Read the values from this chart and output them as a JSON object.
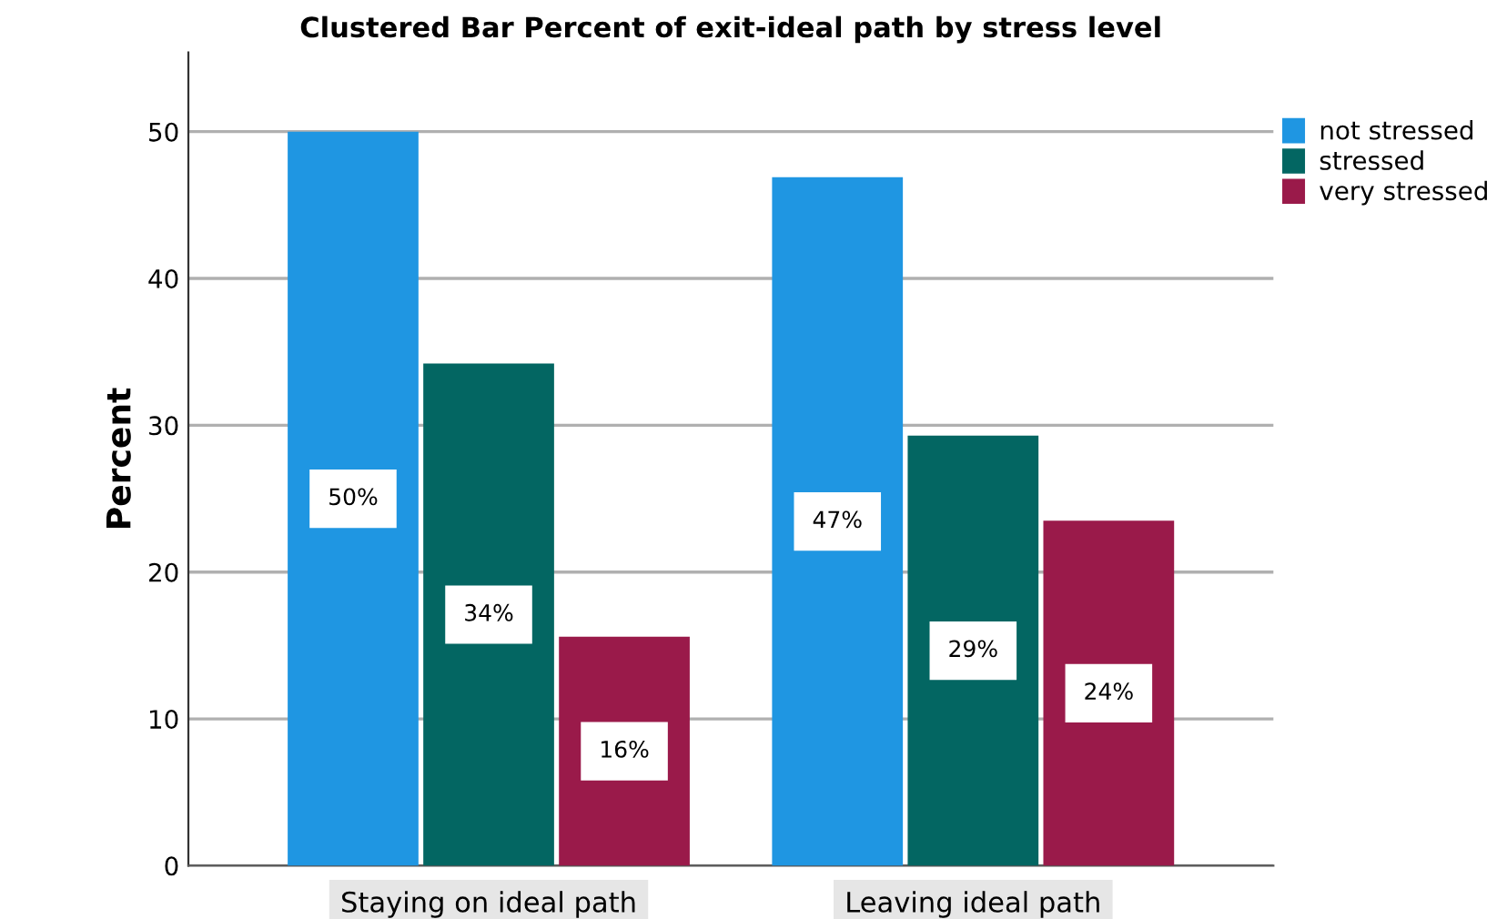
{
  "chart_data": {
    "type": "bar",
    "title": "Clustered Bar Percent of exit-ideal path by stress level",
    "ylabel": "Percent",
    "categories": [
      "Staying on ideal path",
      "Leaving ideal path"
    ],
    "series": [
      {
        "name": "not stressed",
        "color": "#1f96e2",
        "values": [
          50.0,
          46.9
        ],
        "value_labels": [
          "50%",
          "47%"
        ]
      },
      {
        "name": "stressed",
        "color": "#036662",
        "values": [
          34.2,
          29.3
        ],
        "value_labels": [
          "34%",
          "29%"
        ]
      },
      {
        "name": "very stressed",
        "color": "#9a1a4a",
        "values": [
          15.6,
          23.5
        ],
        "value_labels": [
          "16%",
          "24%"
        ]
      }
    ],
    "ylim": [
      0,
      55.4
    ],
    "yticks": [
      0,
      10,
      20,
      30,
      40,
      50
    ],
    "grid": "y",
    "legend": "top right"
  }
}
